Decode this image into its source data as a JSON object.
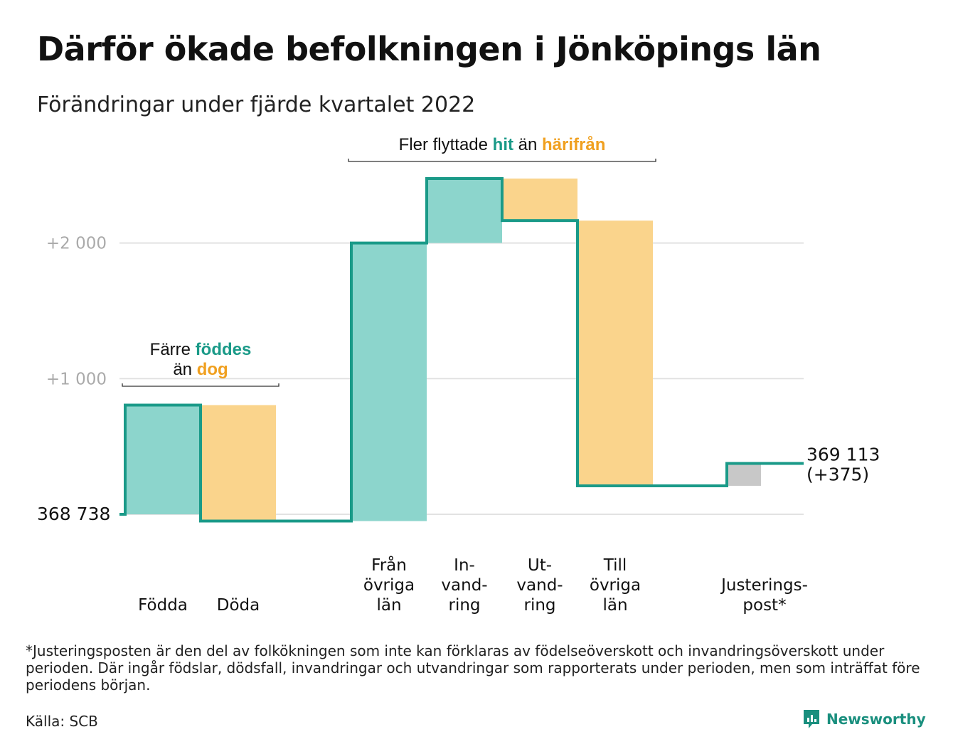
{
  "title": "Därför ökade befolkningen i Jönköpings län",
  "subtitle": "Förändringar under fjärde kvartalet 2022",
  "colors": {
    "in": "#8cd5cc",
    "out": "#fad48c",
    "adjust": "#c8c8c8",
    "line": "#1a9a88",
    "hit": "#1a9a88",
    "harifran": "#f0a020",
    "grid": "#e2e2e2",
    "tick": "#aaaaaa"
  },
  "chart_data": {
    "type": "waterfall",
    "start": {
      "label": "368 738",
      "value": 0
    },
    "y_ticks": [
      {
        "value": 1000,
        "label": "+1 000"
      },
      {
        "value": 2000,
        "label": "+2 000"
      }
    ],
    "ylim": [
      -90,
      2560
    ],
    "steps": [
      {
        "id": "fodda",
        "label_lines": [
          "Födda"
        ],
        "delta": 805,
        "kind": "in"
      },
      {
        "id": "doda",
        "label_lines": [
          "Döda"
        ],
        "delta": -855,
        "kind": "out"
      },
      {
        "id": "fran-ovriga-lan",
        "label_lines": [
          "Från",
          "övriga",
          "län"
        ],
        "delta": 2050,
        "kind": "in"
      },
      {
        "id": "invandring",
        "label_lines": [
          "In-",
          "vand-",
          "ring"
        ],
        "delta": 475,
        "kind": "in"
      },
      {
        "id": "utvandring",
        "label_lines": [
          "Ut-",
          "vand-",
          "ring"
        ],
        "delta": -310,
        "kind": "out"
      },
      {
        "id": "till-ovriga-lan",
        "label_lines": [
          "Till",
          "övriga",
          "län"
        ],
        "delta": -1955,
        "kind": "out"
      },
      {
        "id": "justeringspost",
        "label_lines": [
          "Justerings-",
          "post*"
        ],
        "delta": 165,
        "kind": "adjust"
      }
    ],
    "end": {
      "label": "369 113",
      "change_label": "(+375)",
      "value": 375
    },
    "annotations": [
      {
        "id": "births",
        "lines": [
          [
            {
              "t": "Färre ",
              "s": "plain"
            },
            {
              "t": "föddes",
              "s": "hit"
            }
          ],
          [
            {
              "t": "än ",
              "s": "plain"
            },
            {
              "t": "dog",
              "s": "harifran"
            }
          ]
        ],
        "from_step": "fodda",
        "to_step": "doda"
      },
      {
        "id": "migration",
        "lines": [
          [
            {
              "t": "Fler flyttade ",
              "s": "plain"
            },
            {
              "t": "hit",
              "s": "hit"
            },
            {
              "t": " än ",
              "s": "plain"
            },
            {
              "t": "härifrån",
              "s": "harifran"
            }
          ]
        ],
        "from_step": "fran-ovriga-lan",
        "to_step": "till-ovriga-lan"
      }
    ]
  },
  "footnote": "*Justeringsposten är den del av folkökningen som inte kan förklaras av födelseöverskott och invandringsöverskott under perioden. Där ingår födslar, dödsfall, invandringar och utvandringar som rapporterats under perioden, men som inträffat före periodens början.",
  "source": "Källa: SCB",
  "brand": {
    "name": "Newsworthy",
    "icon": "newsworthy-logo-icon"
  }
}
